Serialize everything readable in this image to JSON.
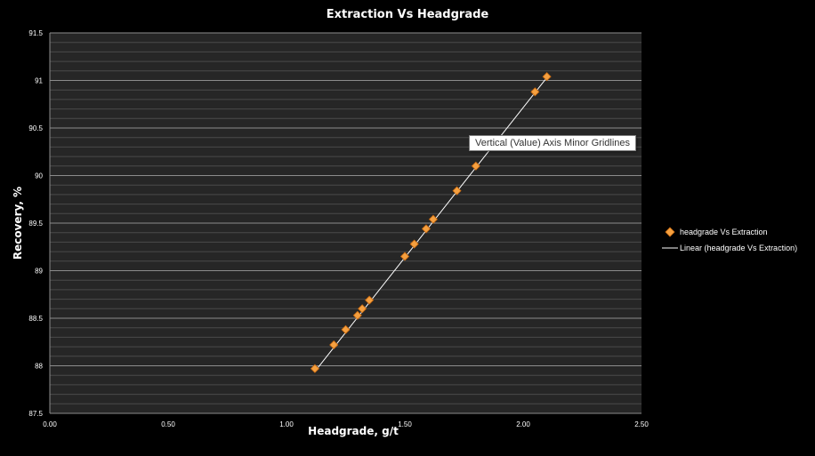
{
  "chart_data": {
    "type": "scatter",
    "title": "Extraction Vs Headgrade",
    "xlabel": "Headgrade, g/t",
    "ylabel": "Recovery, %",
    "xlim": [
      0,
      2.5
    ],
    "ylim": [
      87.5,
      91.5
    ],
    "xticks": [
      "0.00",
      "0.50",
      "1.00",
      "1.50",
      "2.00",
      "2.50"
    ],
    "yticks": [
      "87.5",
      "88",
      "88.5",
      "89",
      "89.5",
      "90",
      "90.5",
      "91",
      "91.5"
    ],
    "grid": "major and minor horizontal",
    "legend_position": "right",
    "series": [
      {
        "name": "headgrade Vs Extraction",
        "marker": "diamond",
        "color": "#f5a040",
        "points": [
          {
            "x": 1.12,
            "y": 87.97
          },
          {
            "x": 1.2,
            "y": 88.22
          },
          {
            "x": 1.25,
            "y": 88.38
          },
          {
            "x": 1.3,
            "y": 88.53
          },
          {
            "x": 1.32,
            "y": 88.6
          },
          {
            "x": 1.35,
            "y": 88.69
          },
          {
            "x": 1.5,
            "y": 89.15
          },
          {
            "x": 1.54,
            "y": 89.28
          },
          {
            "x": 1.59,
            "y": 89.44
          },
          {
            "x": 1.62,
            "y": 89.54
          },
          {
            "x": 1.72,
            "y": 89.84
          },
          {
            "x": 1.8,
            "y": 90.1
          },
          {
            "x": 2.05,
            "y": 90.88
          },
          {
            "x": 2.1,
            "y": 91.04
          }
        ]
      }
    ],
    "trendline": {
      "name": "Linear (headgrade Vs Extraction)",
      "type": "linear",
      "color": "#ffffff",
      "from": {
        "x": 1.12,
        "y": 87.94
      },
      "to": {
        "x": 2.1,
        "y": 91.03
      }
    }
  },
  "tooltip": {
    "text": "Vertical (Value) Axis Minor Gridlines"
  }
}
